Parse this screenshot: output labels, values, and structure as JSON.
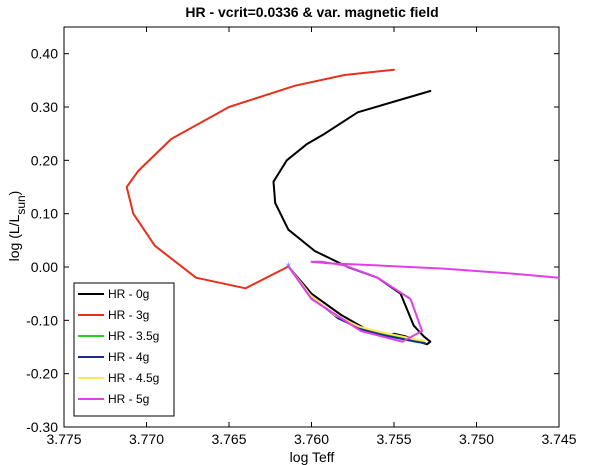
{
  "chart_data": {
    "type": "line",
    "title": "HR - vcrit=0.0336 & var. magnetic field",
    "xlabel": "log Teff",
    "ylabel": "log (L/L",
    "ylabel_subscript": "sun",
    "ylabel_close": ")",
    "xlim": [
      3.775,
      3.745
    ],
    "ylim": [
      -0.3,
      0.45
    ],
    "x_reversed": true,
    "grid": false,
    "legend_position": "bottom-left",
    "xticks": [
      "3.775",
      "3.770",
      "3.765",
      "3.760",
      "3.755",
      "3.750",
      "3.745"
    ],
    "yticks": [
      "0.40",
      "0.30",
      "0.20",
      "0.10",
      "0.00",
      "-0.10",
      "-0.20",
      "-0.30"
    ],
    "marker": {
      "x": 3.7614,
      "y": 0.001,
      "color": "#7b68ee",
      "symbol": "*"
    },
    "series": [
      {
        "name": "HR - 0g",
        "color": "#000000",
        "x": [
          3.7614,
          3.76,
          3.7582,
          3.7565,
          3.7555,
          3.755,
          3.7543,
          3.7535,
          3.753,
          3.7528,
          3.7532,
          3.7538,
          3.7546,
          3.756,
          3.7578,
          3.7598,
          3.7614,
          3.7622,
          3.7623,
          3.7615,
          3.7603,
          3.7592,
          3.7572,
          3.7528
        ],
        "y": [
          0.001,
          -0.05,
          -0.09,
          -0.12,
          -0.13,
          -0.125,
          -0.13,
          -0.14,
          -0.145,
          -0.14,
          -0.13,
          -0.11,
          -0.05,
          -0.02,
          0.0,
          0.03,
          0.07,
          0.12,
          0.16,
          0.2,
          0.23,
          0.25,
          0.29,
          0.33
        ]
      },
      {
        "name": "HR - 3g",
        "color": "#e8301c",
        "x": [
          3.7614,
          3.764,
          3.767,
          3.7695,
          3.7708,
          3.7712,
          3.7705,
          3.7685,
          3.765,
          3.761,
          3.758,
          3.755
        ],
        "y": [
          0.001,
          -0.04,
          -0.02,
          0.04,
          0.1,
          0.15,
          0.18,
          0.24,
          0.3,
          0.34,
          0.36,
          0.37
        ]
      },
      {
        "name": "HR - 3.5g",
        "color": "#22d322",
        "x": [
          3.7614,
          3.76,
          3.7585,
          3.757,
          3.7557,
          3.7546,
          3.7538,
          3.7532
        ],
        "y": [
          0.001,
          -0.055,
          -0.093,
          -0.115,
          -0.125,
          -0.132,
          -0.138,
          -0.141
        ]
      },
      {
        "name": "HR - 4g",
        "color": "#1c2a8a",
        "x": [
          3.7614,
          3.7599,
          3.7584,
          3.7569,
          3.7556,
          3.7545,
          3.7537,
          3.7531
        ],
        "y": [
          0.001,
          -0.058,
          -0.096,
          -0.118,
          -0.128,
          -0.135,
          -0.14,
          -0.143
        ]
      },
      {
        "name": "HR - 4.5g",
        "color": "#ffe75a",
        "x": [
          3.7614,
          3.7601,
          3.7586,
          3.7571,
          3.7558,
          3.7547,
          3.7538,
          3.7532
        ],
        "y": [
          0.001,
          -0.052,
          -0.09,
          -0.112,
          -0.122,
          -0.129,
          -0.135,
          -0.138
        ]
      },
      {
        "name": "HR - 5g",
        "color": "#e040e8",
        "x": [
          3.7614,
          3.76,
          3.757,
          3.7545,
          3.7533,
          3.754,
          3.756,
          3.758,
          3.7594,
          3.76,
          3.759,
          3.756,
          3.752,
          3.748,
          3.745
        ],
        "y": [
          0.001,
          -0.06,
          -0.12,
          -0.14,
          -0.12,
          -0.06,
          -0.02,
          0.003,
          0.01,
          0.01,
          0.007,
          0.003,
          -0.003,
          -0.012,
          -0.02
        ]
      }
    ]
  }
}
